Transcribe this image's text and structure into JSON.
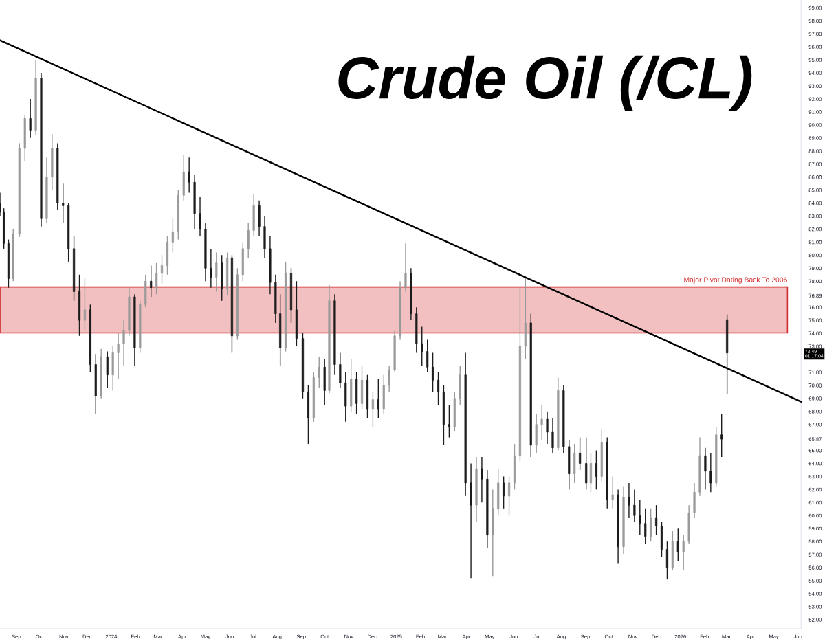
{
  "chart_data": {
    "type": "candlestick",
    "title": "Crude Oil (/CL)",
    "x": [
      "2023-08-11",
      "2023-08-16",
      "2023-08-22",
      "2023-08-28",
      "2023-09-05",
      "2023-09-12",
      "2023-09-19",
      "2023-09-26",
      "2023-10-03",
      "2023-10-10",
      "2023-10-17",
      "2023-10-24",
      "2023-10-31",
      "2023-11-07",
      "2023-11-14",
      "2023-11-21",
      "2023-11-28",
      "2023-12-05",
      "2023-12-12",
      "2023-12-19",
      "2023-12-27",
      "2024-01-03",
      "2024-01-10",
      "2024-01-17",
      "2024-01-24",
      "2024-01-31",
      "2024-02-07",
      "2024-02-14",
      "2024-02-21",
      "2024-02-28",
      "2024-03-06",
      "2024-03-13",
      "2024-03-20",
      "2024-03-27",
      "2024-04-03",
      "2024-04-10",
      "2024-04-17",
      "2024-04-24",
      "2024-05-01",
      "2024-05-08",
      "2024-05-15",
      "2024-05-22",
      "2024-05-29",
      "2024-06-04",
      "2024-06-11",
      "2024-06-18",
      "2024-06-25",
      "2024-07-02",
      "2024-07-09",
      "2024-07-16",
      "2024-07-23",
      "2024-07-30",
      "2024-08-05",
      "2024-08-12",
      "2024-08-19",
      "2024-08-26",
      "2024-09-03",
      "2024-09-10",
      "2024-09-17",
      "2024-09-24",
      "2024-10-01",
      "2024-10-07",
      "2024-10-14",
      "2024-10-21",
      "2024-10-28",
      "2024-11-04",
      "2024-11-11",
      "2024-11-18",
      "2024-11-25",
      "2024-12-02",
      "2024-12-09",
      "2024-12-16",
      "2024-12-23",
      "2024-12-30",
      "2025-01-06",
      "2025-01-13",
      "2025-01-20",
      "2025-01-27",
      "2025-02-03",
      "2025-02-10",
      "2025-02-17",
      "2025-02-24",
      "2025-03-03",
      "2025-03-10",
      "2025-03-17",
      "2025-03-24",
      "2025-03-31",
      "2025-04-07",
      "2025-04-14",
      "2025-04-21",
      "2025-04-28",
      "2025-05-05",
      "2025-05-12",
      "2025-05-19",
      "2025-05-26",
      "2025-06-02",
      "2025-06-09",
      "2025-06-16",
      "2025-06-23",
      "2025-06-30",
      "2025-07-07",
      "2025-07-14",
      "2025-07-21",
      "2025-07-28",
      "2025-08-04",
      "2025-08-11",
      "2025-08-18",
      "2025-08-25",
      "2025-09-02",
      "2025-09-08",
      "2025-09-15",
      "2025-09-22",
      "2025-09-29",
      "2025-10-06",
      "2025-10-13",
      "2025-10-20",
      "2025-10-27",
      "2025-11-03",
      "2025-11-10",
      "2025-11-17",
      "2025-11-24",
      "2025-12-01",
      "2025-12-08",
      "2025-12-15",
      "2025-12-22",
      "2025-12-29",
      "2026-01-05",
      "2026-01-12",
      "2026-01-19",
      "2026-01-26",
      "2026-02-02",
      "2026-02-09",
      "2026-02-16",
      "2026-02-23",
      "2026-03-02"
    ],
    "ohlc": [
      [
        84.0,
        84.8,
        83.0,
        83.3
      ],
      [
        83.3,
        83.6,
        80.5,
        80.9
      ],
      [
        80.9,
        81.2,
        77.5,
        78.2
      ],
      [
        78.2,
        82.0,
        78.0,
        81.6
      ],
      [
        81.6,
        88.6,
        81.4,
        88.2
      ],
      [
        88.2,
        90.8,
        87.2,
        90.5
      ],
      [
        90.5,
        92.0,
        89.0,
        89.6
      ],
      [
        89.6,
        95.0,
        89.2,
        93.6
      ],
      [
        93.6,
        94.0,
        82.2,
        82.8
      ],
      [
        82.8,
        87.5,
        82.5,
        86.0
      ],
      [
        86.0,
        89.3,
        85.0,
        88.2
      ],
      [
        88.2,
        88.6,
        83.5,
        84.0
      ],
      [
        84.0,
        85.5,
        82.5,
        83.8
      ],
      [
        83.8,
        84.0,
        79.5,
        80.5
      ],
      [
        80.5,
        81.5,
        76.5,
        77.2
      ],
      [
        77.2,
        78.5,
        73.8,
        75.0
      ],
      [
        75.0,
        78.2,
        74.2,
        75.8
      ],
      [
        75.8,
        76.2,
        71.0,
        71.6
      ],
      [
        71.6,
        72.4,
        67.8,
        69.2
      ],
      [
        69.2,
        72.8,
        69.0,
        72.2
      ],
      [
        72.2,
        72.6,
        69.8,
        70.8
      ],
      [
        70.8,
        73.0,
        69.6,
        72.5
      ],
      [
        72.5,
        74.0,
        70.5,
        73.2
      ],
      [
        73.2,
        75.0,
        71.5,
        74.2
      ],
      [
        74.2,
        77.5,
        73.8,
        76.8
      ],
      [
        76.8,
        77.0,
        71.5,
        72.9
      ],
      [
        72.9,
        76.5,
        72.5,
        76.2
      ],
      [
        76.2,
        78.5,
        76.0,
        78.0
      ],
      [
        78.0,
        79.2,
        76.8,
        77.5
      ],
      [
        77.5,
        79.4,
        77.0,
        78.6
      ],
      [
        78.6,
        80.0,
        77.8,
        79.2
      ],
      [
        79.2,
        81.5,
        78.5,
        81.0
      ],
      [
        81.0,
        82.8,
        80.2,
        81.8
      ],
      [
        81.8,
        85.0,
        81.2,
        84.6
      ],
      [
        84.6,
        87.7,
        84.2,
        86.4
      ],
      [
        86.4,
        87.5,
        84.8,
        85.6
      ],
      [
        85.6,
        86.2,
        82.0,
        83.2
      ],
      [
        83.2,
        84.5,
        81.5,
        82.0
      ],
      [
        82.0,
        82.5,
        78.0,
        79.0
      ],
      [
        79.0,
        80.5,
        77.5,
        78.3
      ],
      [
        78.3,
        80.2,
        77.2,
        79.4
      ],
      [
        79.4,
        80.0,
        76.5,
        77.4
      ],
      [
        77.4,
        80.2,
        76.9,
        79.8
      ],
      [
        79.8,
        80.0,
        72.5,
        73.8
      ],
      [
        73.8,
        79.0,
        73.5,
        78.5
      ],
      [
        78.5,
        81.0,
        78.0,
        80.5
      ],
      [
        80.5,
        82.5,
        79.8,
        81.9
      ],
      [
        81.9,
        84.7,
        81.5,
        83.8
      ],
      [
        83.8,
        84.2,
        81.5,
        82.2
      ],
      [
        82.2,
        83.0,
        79.8,
        80.5
      ],
      [
        80.5,
        81.5,
        77.0,
        77.9
      ],
      [
        77.9,
        78.5,
        74.8,
        75.5
      ],
      [
        75.5,
        77.0,
        71.5,
        72.9
      ],
      [
        72.9,
        79.5,
        72.6,
        78.6
      ],
      [
        78.6,
        79.0,
        74.8,
        75.8
      ],
      [
        75.8,
        78.0,
        73.0,
        73.6
      ],
      [
        73.6,
        74.0,
        69.0,
        69.5
      ],
      [
        69.5,
        70.0,
        65.5,
        67.5
      ],
      [
        67.5,
        71.0,
        67.2,
        70.6
      ],
      [
        70.6,
        72.2,
        69.8,
        71.4
      ],
      [
        71.4,
        72.0,
        68.5,
        69.6
      ],
      [
        69.6,
        77.7,
        69.4,
        76.5
      ],
      [
        76.5,
        77.0,
        70.8,
        71.6
      ],
      [
        71.6,
        72.5,
        69.8,
        70.2
      ],
      [
        70.2,
        71.0,
        67.2,
        68.4
      ],
      [
        68.4,
        72.0,
        68.0,
        70.5
      ],
      [
        70.5,
        71.0,
        67.8,
        68.6
      ],
      [
        68.6,
        71.5,
        68.2,
        70.4
      ],
      [
        70.4,
        70.8,
        67.5,
        68.2
      ],
      [
        68.2,
        69.5,
        66.8,
        68.9
      ],
      [
        68.9,
        70.5,
        67.5,
        68.2
      ],
      [
        68.2,
        70.8,
        67.8,
        70.0
      ],
      [
        70.0,
        71.5,
        69.5,
        71.2
      ],
      [
        71.2,
        74.2,
        71.0,
        73.8
      ],
      [
        73.8,
        78.0,
        73.5,
        77.5
      ],
      [
        77.5,
        80.9,
        77.2,
        78.6
      ],
      [
        78.6,
        79.0,
        75.0,
        75.5
      ],
      [
        75.5,
        76.0,
        72.5,
        73.2
      ],
      [
        73.2,
        74.5,
        71.5,
        72.6
      ],
      [
        72.6,
        73.5,
        71.0,
        71.4
      ],
      [
        71.4,
        72.5,
        69.5,
        70.4
      ],
      [
        70.4,
        71.0,
        68.5,
        69.5
      ],
      [
        69.5,
        70.0,
        65.4,
        67.0
      ],
      [
        67.0,
        68.5,
        66.0,
        66.8
      ],
      [
        66.8,
        69.5,
        66.5,
        69.0
      ],
      [
        69.0,
        71.5,
        68.5,
        70.8
      ],
      [
        70.8,
        72.5,
        61.5,
        62.5
      ],
      [
        62.5,
        64.0,
        55.2,
        60.8
      ],
      [
        60.8,
        64.5,
        59.5,
        63.6
      ],
      [
        63.6,
        64.5,
        61.0,
        62.8
      ],
      [
        62.8,
        63.5,
        57.5,
        58.5
      ],
      [
        58.5,
        62.0,
        55.3,
        60.5
      ],
      [
        60.5,
        63.6,
        60.0,
        62.5
      ],
      [
        62.5,
        63.0,
        60.5,
        61.5
      ],
      [
        61.5,
        63.0,
        60.0,
        62.5
      ],
      [
        62.5,
        65.5,
        62.0,
        64.6
      ],
      [
        64.6,
        77.5,
        64.2,
        73.0
      ],
      [
        73.0,
        78.4,
        72.0,
        74.8
      ],
      [
        74.8,
        75.5,
        64.5,
        65.4
      ],
      [
        65.4,
        67.8,
        64.8,
        67.0
      ],
      [
        67.0,
        68.5,
        65.8,
        67.4
      ],
      [
        67.4,
        68.0,
        65.5,
        66.4
      ],
      [
        66.4,
        67.5,
        64.8,
        65.2
      ],
      [
        65.2,
        70.6,
        65.0,
        69.6
      ],
      [
        69.6,
        70.0,
        64.8,
        65.3
      ],
      [
        65.3,
        65.8,
        62.0,
        63.2
      ],
      [
        63.2,
        65.5,
        62.5,
        64.8
      ],
      [
        64.8,
        66.0,
        63.5,
        64.0
      ],
      [
        64.0,
        66.0,
        62.0,
        62.5
      ],
      [
        62.5,
        64.8,
        61.8,
        64.0
      ],
      [
        64.0,
        65.0,
        62.0,
        63.0
      ],
      [
        63.0,
        66.6,
        62.6,
        65.6
      ],
      [
        65.6,
        66.0,
        60.5,
        61.2
      ],
      [
        61.2,
        63.0,
        60.5,
        61.6
      ],
      [
        61.6,
        62.0,
        56.3,
        57.6
      ],
      [
        57.6,
        62.2,
        57.0,
        61.4
      ],
      [
        61.4,
        62.5,
        59.8,
        60.8
      ],
      [
        60.8,
        62.0,
        59.5,
        60.0
      ],
      [
        60.0,
        61.2,
        58.5,
        59.4
      ],
      [
        59.4,
        60.5,
        57.8,
        58.4
      ],
      [
        58.4,
        60.5,
        58.0,
        59.8
      ],
      [
        59.8,
        60.8,
        58.5,
        59.2
      ],
      [
        59.2,
        59.5,
        56.8,
        57.4
      ],
      [
        57.4,
        58.0,
        55.1,
        56.0
      ],
      [
        56.0,
        58.8,
        55.8,
        58.0
      ],
      [
        58.0,
        59.0,
        56.5,
        57.2
      ],
      [
        57.2,
        58.5,
        55.8,
        58.0
      ],
      [
        58.0,
        60.8,
        57.8,
        60.2
      ],
      [
        60.2,
        62.5,
        59.8,
        61.8
      ],
      [
        61.8,
        66.0,
        61.5,
        64.6
      ],
      [
        64.6,
        65.2,
        62.0,
        63.4
      ],
      [
        63.4,
        64.8,
        61.8,
        62.5
      ],
      [
        62.5,
        66.8,
        62.2,
        66.2
      ],
      [
        66.2,
        67.8,
        64.5,
        65.87
      ],
      [
        75.05,
        75.45,
        69.3,
        72.49
      ]
    ],
    "colors": [
      "#1c1c1c",
      "#1c1c1c",
      "#1c1c1c",
      "#9a9a9a",
      "#9a9a9a",
      "#9a9a9a",
      "#1c1c1c",
      "#9a9a9a",
      "#1c1c1c",
      "#9a9a9a",
      "#9a9a9a",
      "#1c1c1c",
      "#1c1c1c",
      "#1c1c1c",
      "#1c1c1c",
      "#1c1c1c",
      "#9a9a9a",
      "#1c1c1c",
      "#1c1c1c",
      "#9a9a9a",
      "#1c1c1c",
      "#9a9a9a",
      "#9a9a9a",
      "#9a9a9a",
      "#9a9a9a",
      "#1c1c1c",
      "#9a9a9a",
      "#9a9a9a",
      "#1c1c1c",
      "#9a9a9a",
      "#9a9a9a",
      "#9a9a9a",
      "#9a9a9a",
      "#9a9a9a",
      "#9a9a9a",
      "#1c1c1c",
      "#1c1c1c",
      "#1c1c1c",
      "#1c1c1c",
      "#1c1c1c",
      "#9a9a9a",
      "#1c1c1c",
      "#9a9a9a",
      "#1c1c1c",
      "#9a9a9a",
      "#9a9a9a",
      "#9a9a9a",
      "#9a9a9a",
      "#1c1c1c",
      "#1c1c1c",
      "#1c1c1c",
      "#1c1c1c",
      "#1c1c1c",
      "#9a9a9a",
      "#1c1c1c",
      "#1c1c1c",
      "#1c1c1c",
      "#1c1c1c",
      "#9a9a9a",
      "#9a9a9a",
      "#1c1c1c",
      "#9a9a9a",
      "#1c1c1c",
      "#1c1c1c",
      "#1c1c1c",
      "#9a9a9a",
      "#1c1c1c",
      "#9a9a9a",
      "#1c1c1c",
      "#9a9a9a",
      "#1c1c1c",
      "#9a9a9a",
      "#9a9a9a",
      "#9a9a9a",
      "#9a9a9a",
      "#9a9a9a",
      "#1c1c1c",
      "#1c1c1c",
      "#1c1c1c",
      "#1c1c1c",
      "#1c1c1c",
      "#1c1c1c",
      "#1c1c1c",
      "#1c1c1c",
      "#9a9a9a",
      "#9a9a9a",
      "#1c1c1c",
      "#1c1c1c",
      "#9a9a9a",
      "#1c1c1c",
      "#1c1c1c",
      "#9a9a9a",
      "#9a9a9a",
      "#1c1c1c",
      "#9a9a9a",
      "#9a9a9a",
      "#9a9a9a",
      "#9a9a9a",
      "#1c1c1c",
      "#9a9a9a",
      "#9a9a9a",
      "#1c1c1c",
      "#1c1c1c",
      "#9a9a9a",
      "#1c1c1c",
      "#1c1c1c",
      "#9a9a9a",
      "#1c1c1c",
      "#1c1c1c",
      "#9a9a9a",
      "#1c1c1c",
      "#9a9a9a",
      "#1c1c1c",
      "#9a9a9a",
      "#1c1c1c",
      "#9a9a9a",
      "#1c1c1c",
      "#1c1c1c",
      "#1c1c1c",
      "#1c1c1c",
      "#9a9a9a",
      "#1c1c1c",
      "#1c1c1c",
      "#1c1c1c",
      "#9a9a9a",
      "#1c1c1c",
      "#9a9a9a",
      "#9a9a9a",
      "#9a9a9a",
      "#9a9a9a",
      "#1c1c1c",
      "#1c1c1c",
      "#9a9a9a",
      "#1c1c1c",
      "#1c1c1c"
    ],
    "series": [
      {
        "type": "line",
        "x": [
          "2023-08-11",
          "2026-06-05"
        ],
        "values": [
          96.5,
          68.75
        ],
        "color": "#000000"
      }
    ],
    "xlim": [
      "2023-08-11",
      "2026-06-05"
    ],
    "xticks": [
      {
        "value": "2023-09-01",
        "label": "Sep"
      },
      {
        "value": "2023-10-01",
        "label": "Oct"
      },
      {
        "value": "2023-11-01",
        "label": "Nov"
      },
      {
        "value": "2023-12-01",
        "label": "Dec"
      },
      {
        "value": "2024-01-01",
        "label": "2024"
      },
      {
        "value": "2024-02-01",
        "label": "Feb"
      },
      {
        "value": "2024-03-01",
        "label": "Mar"
      },
      {
        "value": "2024-04-01",
        "label": "Apr"
      },
      {
        "value": "2024-05-01",
        "label": "May"
      },
      {
        "value": "2024-06-01",
        "label": "Jun"
      },
      {
        "value": "2024-07-01",
        "label": "Jul"
      },
      {
        "value": "2024-08-01",
        "label": "Aug"
      },
      {
        "value": "2024-09-01",
        "label": "Sep"
      },
      {
        "value": "2024-10-01",
        "label": "Oct"
      },
      {
        "value": "2024-11-01",
        "label": "Nov"
      },
      {
        "value": "2024-12-01",
        "label": "Dec"
      },
      {
        "value": "2025-01-01",
        "label": "2025"
      },
      {
        "value": "2025-02-01",
        "label": "Feb"
      },
      {
        "value": "2025-03-01",
        "label": "Mar"
      },
      {
        "value": "2025-04-01",
        "label": "Apr"
      },
      {
        "value": "2025-05-01",
        "label": "May"
      },
      {
        "value": "2025-06-01",
        "label": "Jun"
      },
      {
        "value": "2025-07-01",
        "label": "Jul"
      },
      {
        "value": "2025-08-01",
        "label": "Aug"
      },
      {
        "value": "2025-09-01",
        "label": "Sep"
      },
      {
        "value": "2025-10-01",
        "label": "Oct"
      },
      {
        "value": "2025-11-01",
        "label": "Nov"
      },
      {
        "value": "2025-12-01",
        "label": "Dec"
      },
      {
        "value": "2026-01-01",
        "label": "2026"
      },
      {
        "value": "2026-02-01",
        "label": "Feb"
      },
      {
        "value": "2026-03-01",
        "label": "Mar"
      },
      {
        "value": "2026-04-01",
        "label": "Apr"
      },
      {
        "value": "2026-05-01",
        "label": "May"
      },
      {
        "value": "2026-06-01",
        "label": "Jun"
      }
    ],
    "ylim": [
      51.3,
      99.6
    ],
    "yticks": [
      {
        "value": 52,
        "label": "52.00"
      },
      {
        "value": 53,
        "label": "53.00"
      },
      {
        "value": 54,
        "label": "54.00"
      },
      {
        "value": 55,
        "label": "55.00"
      },
      {
        "value": 56,
        "label": "56.00"
      },
      {
        "value": 57,
        "label": "57.00"
      },
      {
        "value": 58,
        "label": "58.00"
      },
      {
        "value": 59,
        "label": "59.00"
      },
      {
        "value": 60,
        "label": "60.00"
      },
      {
        "value": 61,
        "label": "61.00"
      },
      {
        "value": 62,
        "label": "62.00"
      },
      {
        "value": 63,
        "label": "63.00"
      },
      {
        "value": 64,
        "label": "64.00"
      },
      {
        "value": 65,
        "label": "65.00"
      },
      {
        "value": 65.87,
        "label": "65.87"
      },
      {
        "value": 67,
        "label": "67.00"
      },
      {
        "value": 68,
        "label": "68.00"
      },
      {
        "value": 69,
        "label": "69.00"
      },
      {
        "value": 70,
        "label": "70.00"
      },
      {
        "value": 71,
        "label": "71.00"
      },
      {
        "value": 73,
        "label": "73.00"
      },
      {
        "value": 74,
        "label": "74.00"
      },
      {
        "value": 75,
        "label": "75.00"
      },
      {
        "value": 76,
        "label": "76.00"
      },
      {
        "value": 76.89,
        "label": "76.89"
      },
      {
        "value": 78,
        "label": "78.00"
      },
      {
        "value": 79,
        "label": "79.00"
      },
      {
        "value": 80,
        "label": "80.00"
      },
      {
        "value": 81,
        "label": "81.00"
      },
      {
        "value": 82,
        "label": "82.00"
      },
      {
        "value": 83,
        "label": "83.00"
      },
      {
        "value": 84,
        "label": "84.00"
      },
      {
        "value": 85,
        "label": "85.00"
      },
      {
        "value": 86,
        "label": "86.00"
      },
      {
        "value": 87,
        "label": "87.00"
      },
      {
        "value": 88,
        "label": "88.00"
      },
      {
        "value": 89,
        "label": "89.00"
      },
      {
        "value": 90,
        "label": "90.00"
      },
      {
        "value": 91,
        "label": "91.00"
      },
      {
        "value": 92,
        "label": "92.00"
      },
      {
        "value": 93,
        "label": "93.00"
      },
      {
        "value": 94,
        "label": "94.00"
      },
      {
        "value": 95,
        "label": "95.00"
      },
      {
        "value": 96,
        "label": "96.00"
      },
      {
        "value": 97,
        "label": "97.00"
      },
      {
        "value": 98,
        "label": "98.00"
      },
      {
        "value": 99,
        "label": "99.00"
      }
    ],
    "bands": [
      {
        "axis": "y",
        "from": 74.03,
        "to": 77.56,
        "label": "Major Pivot Dating Back To 2006",
        "color": "#d32f2f"
      }
    ],
    "annotations": [
      "72.49\n01:17:04"
    ],
    "grid": false,
    "legend": false
  }
}
